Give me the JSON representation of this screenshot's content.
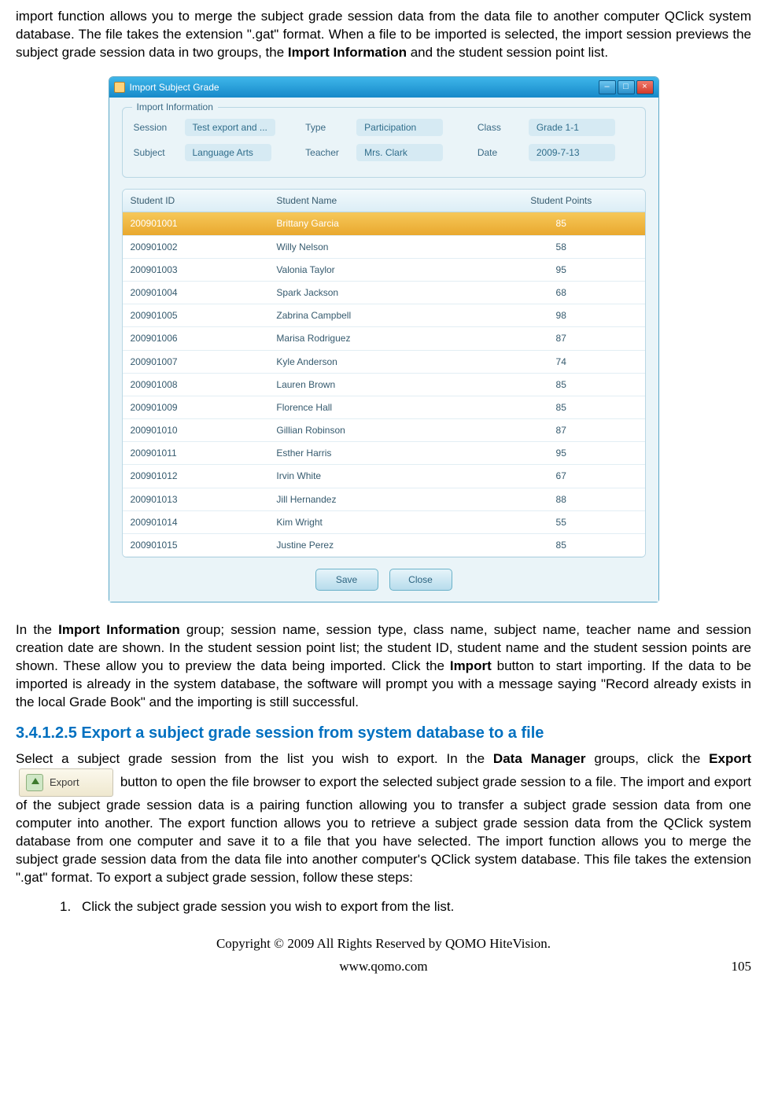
{
  "para1_pre": "import function allows you to merge the subject grade session data from the data file to another computer QClick system database. The file takes the extension \".gat\" format. When a file to be imported is selected, the import session previews the subject grade session data in two groups, the ",
  "para1_bold": "Import Information",
  "para1_post": " and the student session point list.",
  "window": {
    "title": "Import Subject Grade",
    "fieldset_legend": "Import Information",
    "labels": {
      "session": "Session",
      "type": "Type",
      "class": "Class",
      "subject": "Subject",
      "teacher": "Teacher",
      "date": "Date"
    },
    "values": {
      "session": "Test export and ...",
      "type": "Participation",
      "class": "Grade 1-1",
      "subject": "Language Arts",
      "teacher": "Mrs. Clark",
      "date": "2009-7-13"
    },
    "columns": {
      "id": "Student ID",
      "name": "Student Name",
      "points": "Student Points"
    },
    "rows": [
      {
        "id": "200901001",
        "name": "Brittany Garcia",
        "points": "85",
        "selected": true
      },
      {
        "id": "200901002",
        "name": "Willy Nelson",
        "points": "58"
      },
      {
        "id": "200901003",
        "name": "Valonia Taylor",
        "points": "95"
      },
      {
        "id": "200901004",
        "name": "Spark Jackson",
        "points": "68"
      },
      {
        "id": "200901005",
        "name": "Zabrina Campbell",
        "points": "98"
      },
      {
        "id": "200901006",
        "name": "Marisa Rodriguez",
        "points": "87"
      },
      {
        "id": "200901007",
        "name": "Kyle Anderson",
        "points": "74"
      },
      {
        "id": "200901008",
        "name": "Lauren Brown",
        "points": "85"
      },
      {
        "id": "200901009",
        "name": "Florence Hall",
        "points": "85"
      },
      {
        "id": "200901010",
        "name": "Gillian Robinson",
        "points": "87"
      },
      {
        "id": "200901011",
        "name": "Esther Harris",
        "points": "95"
      },
      {
        "id": "200901012",
        "name": "Irvin White",
        "points": "67"
      },
      {
        "id": "200901013",
        "name": "Jill  Hernandez",
        "points": "88"
      },
      {
        "id": "200901014",
        "name": "Kim Wright",
        "points": "55"
      },
      {
        "id": "200901015",
        "name": "Justine Perez",
        "points": "85"
      }
    ],
    "buttons": {
      "save": "Save",
      "close": "Close"
    }
  },
  "para2_a": "In the ",
  "para2_b": "Import Information",
  "para2_c": " group; session name, session type, class name, subject name, teacher name and session creation date are shown. In the student session point list; the student ID, student name and the student session points are shown. These allow you to preview the data being imported. Click the ",
  "para2_d": "Import",
  "para2_e": " button to start importing. If the data to be imported is already in the system database, the software will prompt you with a message saying \"Record already exists in the local Grade Book\" and the importing is still successful.",
  "heading": "3.4.1.2.5  Export a subject grade session from system database to a file",
  "para3_a": "Select a subject grade session from the list you wish to export. In the ",
  "para3_b": "Data Manager",
  "para3_c": " groups, click the ",
  "para3_d": "Export",
  "export_btn_label": "Export",
  "para3_e": " button to open the file browser to export the selected subject grade session to a file. The import and export of the subject grade session data is a pairing function allowing you to transfer a subject grade session data from one computer into another. The export function allows you to retrieve a subject grade session data from the QClick system database from one computer and save it to a file that you have selected. The import function allows you to merge the subject grade session data from the data file into another computer's QClick system database. This file takes the extension \".gat\" format. To export a subject grade session, follow these steps:",
  "step1_num": "1.",
  "step1_text": "Click the subject grade session you wish to export from the list.",
  "copyright": "Copyright © 2009 All Rights Reserved by QOMO HiteVision.",
  "site": "www.qomo.com",
  "page": "105"
}
